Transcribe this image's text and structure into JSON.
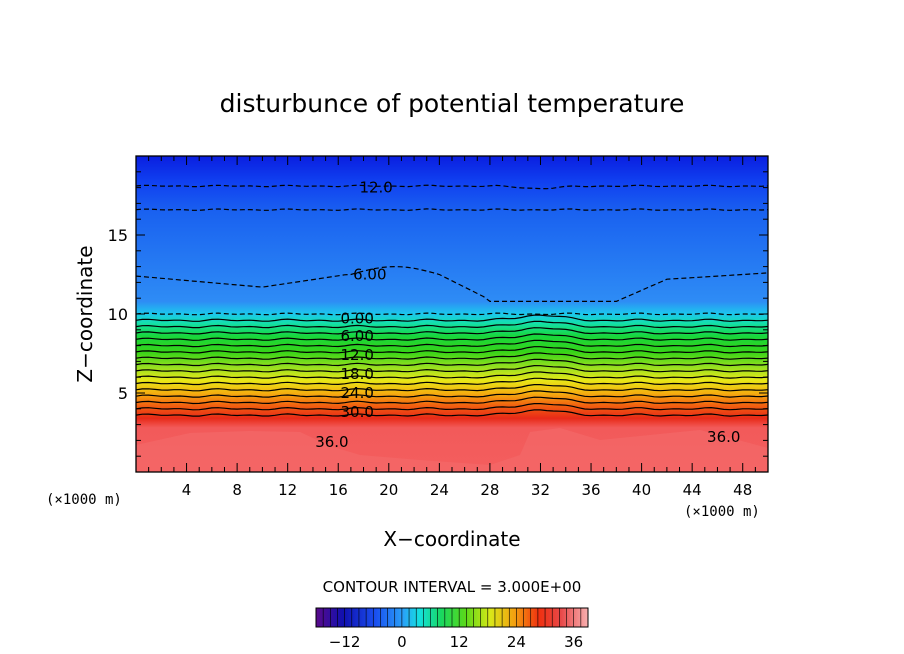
{
  "chart_data": {
    "type": "contour",
    "title": "disturbunce of potential temperature",
    "xlabel": "X−coordinate",
    "ylabel": "Z−coordinate",
    "x_unit_left": "(×1000 m)",
    "x_unit_right": "(×1000 m)",
    "xlim": [
      0,
      50
    ],
    "ylim": [
      0,
      20
    ],
    "x_ticks": [
      4,
      8,
      12,
      16,
      20,
      24,
      28,
      32,
      36,
      40,
      44,
      48
    ],
    "y_ticks": [
      5,
      10,
      15
    ],
    "contour_interval_label": "CONTOUR INTERVAL = 3.000E+00",
    "contour_labels": [
      {
        "text": "12.0",
        "x": 19,
        "z": 18.0
      },
      {
        "text": "6.00",
        "x": 18.5,
        "z": 12.5
      },
      {
        "text": "0.00",
        "x": 17.5,
        "z": 9.7
      },
      {
        "text": "6.00",
        "x": 17.5,
        "z": 8.6
      },
      {
        "text": "12.0",
        "x": 17.5,
        "z": 7.4
      },
      {
        "text": "18.0",
        "x": 17.5,
        "z": 6.2
      },
      {
        "text": "24.0",
        "x": 17.5,
        "z": 5.0
      },
      {
        "text": "30.0",
        "x": 17.5,
        "z": 3.8
      },
      {
        "text": "36.0",
        "x": 15.5,
        "z": 1.9
      },
      {
        "text": "36.0",
        "x": 46.5,
        "z": 2.2
      }
    ],
    "colorbar": {
      "range": [
        -18,
        39
      ],
      "ticks": [
        "−12",
        "0",
        "12",
        "24",
        "36"
      ],
      "tick_values": [
        -12,
        0,
        12,
        24,
        36
      ]
    }
  }
}
